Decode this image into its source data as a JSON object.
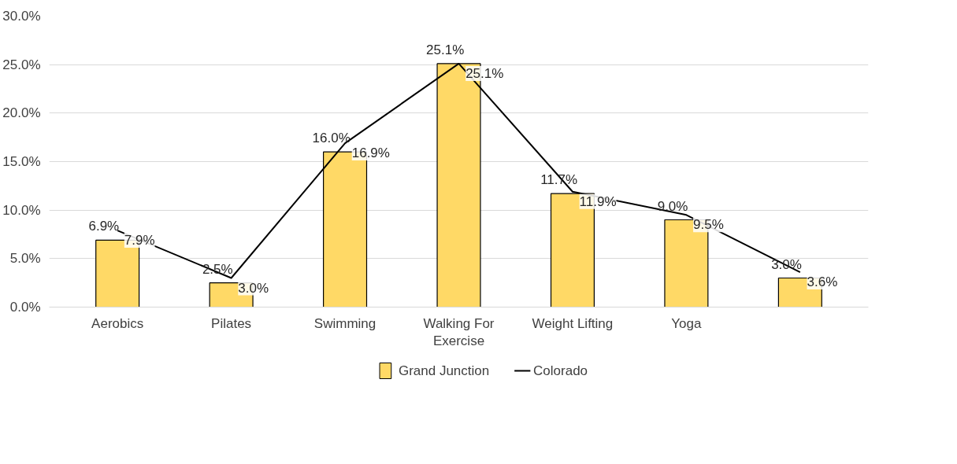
{
  "chart_data": {
    "type": "bar",
    "categories": [
      "Aerobics",
      "Pilates",
      "Swimming",
      "Walking For Exercise",
      "Weight Lifting",
      "Yoga",
      null
    ],
    "series": [
      {
        "name": "Grand Junction",
        "color": "#ffd966",
        "values": [
          6.9,
          2.5,
          16.0,
          25.1,
          11.7,
          9.0,
          3.0
        ],
        "value_labels": [
          "6.9%",
          "2.5%",
          "16.0%",
          "25.1%",
          "11.7%",
          "9.0%",
          "3.0%"
        ]
      },
      {
        "name": "Colorado",
        "type": "line",
        "color": "#000000",
        "values": [
          7.9,
          3.0,
          16.9,
          25.1,
          11.9,
          9.5,
          3.6
        ],
        "value_labels": [
          "7.9%",
          "3.0%",
          "16.9%",
          "25.1%",
          "11.9%",
          "9.5%",
          "3.6%"
        ]
      }
    ],
    "ylim": [
      0,
      30
    ],
    "yticks": [
      {
        "value": 0,
        "label": "0.0%"
      },
      {
        "value": 5,
        "label": "5.0%"
      },
      {
        "value": 10,
        "label": "10.0%"
      },
      {
        "value": 15,
        "label": "15.0%"
      },
      {
        "value": 20,
        "label": "20.0%"
      },
      {
        "value": 25,
        "label": "25.0%"
      },
      {
        "value": 30,
        "label": "30.0%"
      }
    ],
    "grid": "y",
    "legend": "bottom",
    "marker": "none",
    "line_style": "solid"
  }
}
